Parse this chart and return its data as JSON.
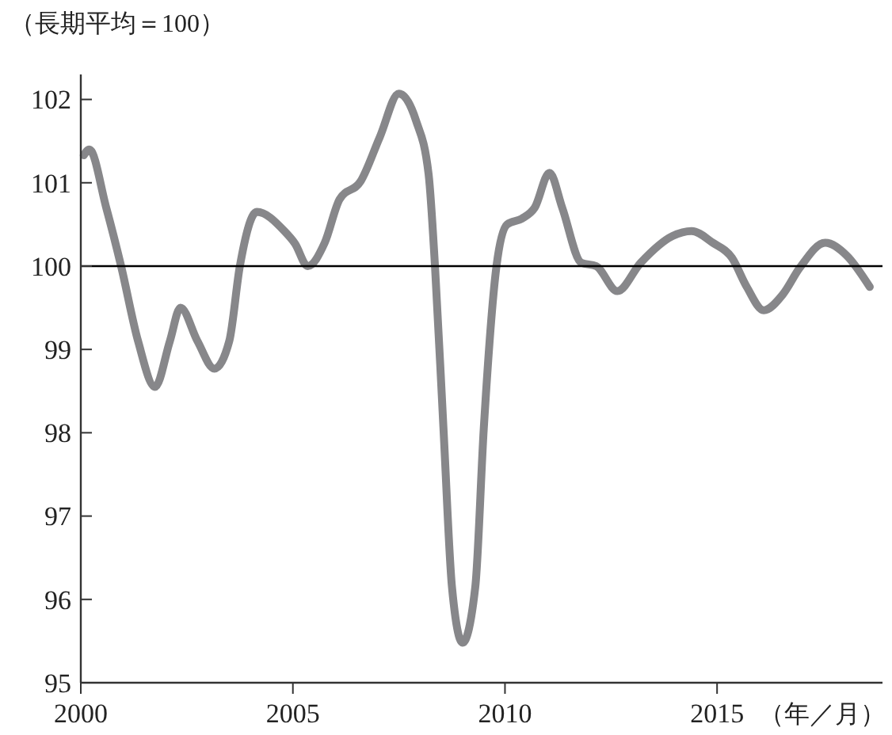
{
  "chart_data": {
    "type": "line",
    "ylabel": "（長期平均＝100）",
    "xlabel": "（年／月）",
    "x": [
      2000.07,
      2000.2,
      2000.6,
      2000.95,
      2001.35,
      2001.75,
      2002.1,
      2002.35,
      2002.75,
      2003.15,
      2003.5,
      2003.75,
      2004.15,
      2004.8,
      2005.05,
      2005.35,
      2005.75,
      2006.1,
      2006.6,
      2007.05,
      2007.5,
      2007.9,
      2008.2,
      2008.35,
      2008.55,
      2008.75,
      2009.0,
      2009.3,
      2009.5,
      2009.8,
      2010.05,
      2010.4,
      2010.7,
      2011.05,
      2011.35,
      2011.8,
      2012.15,
      2012.65,
      2013.2,
      2013.95,
      2014.4,
      2014.9,
      2015.35,
      2015.7,
      2016.1,
      2016.55,
      2016.95,
      2017.55,
      2018.05,
      2018.6
    ],
    "series": [
      {
        "color": "#87878a",
        "values": [
          101.33,
          101.4,
          100.7,
          100.0,
          99.1,
          98.55,
          99.1,
          99.5,
          99.1,
          98.77,
          99.1,
          100.0,
          100.65,
          100.42,
          100.27,
          100.0,
          100.28,
          100.8,
          101.02,
          101.55,
          102.07,
          101.75,
          101.1,
          100.0,
          98.05,
          96.15,
          95.48,
          96.15,
          98.05,
          100.0,
          100.5,
          100.57,
          100.7,
          101.12,
          100.7,
          100.04,
          100.0,
          99.7,
          100.04,
          100.36,
          100.42,
          100.28,
          100.1,
          99.75,
          99.47,
          99.66,
          99.98,
          100.28,
          100.13,
          99.75
        ]
      }
    ],
    "xlim": [
      2000,
      2018.9
    ],
    "xticks": [
      2000,
      2005,
      2010,
      2015
    ],
    "ylim": [
      95,
      102.3
    ],
    "yticks": [
      95,
      96,
      97,
      98,
      99,
      100,
      101,
      102
    ],
    "ref_lines": [
      {
        "axis": "y",
        "value": 100,
        "color": "#000000"
      }
    ],
    "grid": false,
    "marker": "none",
    "line_style": "solid"
  }
}
